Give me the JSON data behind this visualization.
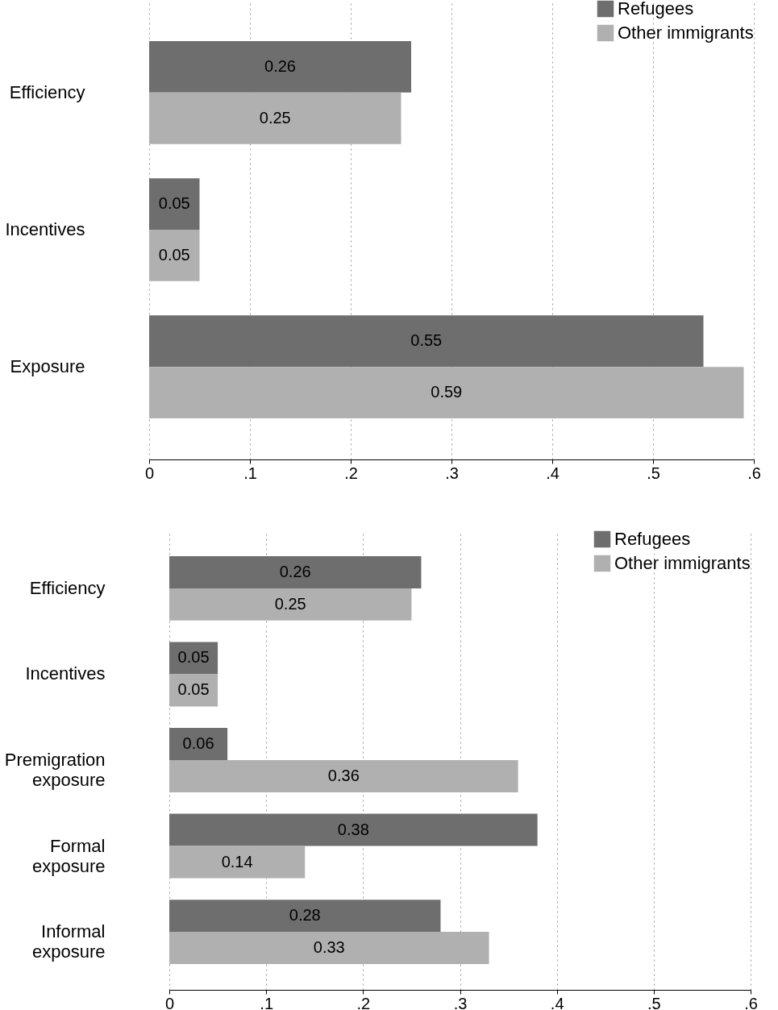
{
  "chart_data": [
    {
      "type": "bar",
      "orientation": "horizontal",
      "categories": [
        "Efficiency",
        "Incentives",
        "Exposure"
      ],
      "series": [
        {
          "name": "Refugees",
          "color": "#6e6e6e",
          "values": [
            0.26,
            0.05,
            0.55
          ]
        },
        {
          "name": "Other immigrants",
          "color": "#b0b0b0",
          "values": [
            0.25,
            0.05,
            0.59
          ]
        }
      ],
      "xlim": [
        0,
        0.6
      ],
      "xticks": [
        0,
        {
          "value": 0.1,
          "label": ".1"
        },
        {
          "value": 0.2,
          "label": ".2"
        },
        {
          "value": 0.3,
          "label": ".3"
        },
        {
          "value": 0.4,
          "label": ".4"
        },
        {
          "value": 0.5,
          "label": ".5"
        },
        {
          "value": 0.6,
          "label": ".6"
        }
      ],
      "grid": "x",
      "legend": "top right",
      "data_labels": true
    },
    {
      "type": "bar",
      "orientation": "horizontal",
      "categories": [
        "Efficiency",
        "Incentives",
        "Premigration exposure",
        "Formal exposure",
        "Informal exposure"
      ],
      "series": [
        {
          "name": "Refugees",
          "color": "#6e6e6e",
          "values": [
            0.26,
            0.05,
            0.06,
            0.38,
            0.28
          ]
        },
        {
          "name": "Other immigrants",
          "color": "#b0b0b0",
          "values": [
            0.25,
            0.05,
            0.36,
            0.14,
            0.33
          ]
        }
      ],
      "xlim": [
        0,
        0.6
      ],
      "xticks": [
        0,
        {
          "value": 0.1,
          "label": ".1"
        },
        {
          "value": 0.2,
          "label": ".2"
        },
        {
          "value": 0.3,
          "label": ".3"
        },
        {
          "value": 0.4,
          "label": ".4"
        },
        {
          "value": 0.5,
          "label": ".5"
        },
        {
          "value": 0.6,
          "label": ".6"
        }
      ],
      "grid": "x",
      "legend": "top right",
      "data_labels": true
    }
  ]
}
